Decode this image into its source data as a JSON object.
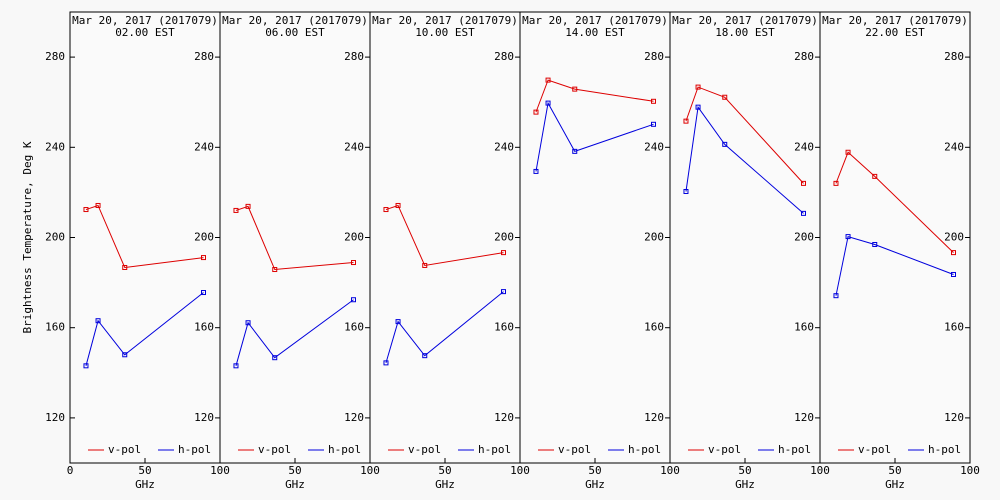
{
  "chart_data": [
    {
      "type": "line",
      "title": "Mar 20, 2017 (2017079)",
      "subtitle": "02.00 EST",
      "xlabel": "GHz",
      "ylabel": "Brightness Temperature, Deg K",
      "x": [
        10.65,
        18.7,
        36.5,
        89
      ],
      "xlim": [
        0,
        100
      ],
      "xticks": [
        0,
        50,
        100
      ],
      "ylim": [
        100,
        300
      ],
      "yticks": [
        120,
        160,
        200,
        240,
        280
      ],
      "series": [
        {
          "name": "v-pol",
          "color": "#dd0000",
          "values": [
            212.4,
            214.2,
            186.7,
            191.1
          ]
        },
        {
          "name": "h-pol",
          "color": "#0000dd",
          "values": [
            143.1,
            163.1,
            148,
            175.6
          ]
        }
      ]
    },
    {
      "type": "line",
      "title": "Mar 20, 2017 (2017079)",
      "subtitle": "06.00 EST",
      "xlabel": "GHz",
      "x": [
        10.65,
        18.7,
        36.5,
        89
      ],
      "xlim": [
        0,
        100
      ],
      "xticks": [
        50,
        100
      ],
      "ylim": [
        100,
        300
      ],
      "yticks": [
        120,
        160,
        200,
        240,
        280
      ],
      "series": [
        {
          "name": "v-pol",
          "color": "#dd0000",
          "values": [
            212,
            213.8,
            185.8,
            188.9
          ]
        },
        {
          "name": "h-pol",
          "color": "#0000dd",
          "values": [
            143.1,
            162.2,
            146.7,
            172.4
          ]
        }
      ]
    },
    {
      "type": "line",
      "title": "Mar 20, 2017 (2017079)",
      "subtitle": "10.00 EST",
      "xlabel": "GHz",
      "x": [
        10.65,
        18.7,
        36.5,
        89
      ],
      "xlim": [
        0,
        100
      ],
      "xticks": [
        50,
        100
      ],
      "ylim": [
        100,
        300
      ],
      "yticks": [
        120,
        160,
        200,
        240,
        280
      ],
      "series": [
        {
          "name": "v-pol",
          "color": "#dd0000",
          "values": [
            212.4,
            214.2,
            187.6,
            193.3
          ]
        },
        {
          "name": "h-pol",
          "color": "#0000dd",
          "values": [
            144.4,
            162.7,
            147.6,
            176
          ]
        }
      ]
    },
    {
      "type": "line",
      "title": "Mar 20, 2017 (2017079)",
      "subtitle": "14.00 EST",
      "xlabel": "GHz",
      "x": [
        10.65,
        18.7,
        36.5,
        89
      ],
      "xlim": [
        0,
        100
      ],
      "xticks": [
        50,
        100
      ],
      "ylim": [
        100,
        300
      ],
      "yticks": [
        120,
        160,
        200,
        240,
        280
      ],
      "series": [
        {
          "name": "v-pol",
          "color": "#dd0000",
          "values": [
            255.6,
            269.8,
            265.8,
            260.4
          ]
        },
        {
          "name": "h-pol",
          "color": "#0000dd",
          "values": [
            229.3,
            259.6,
            238.2,
            250.2
          ]
        }
      ]
    },
    {
      "type": "line",
      "title": "Mar 20, 2017 (2017079)",
      "subtitle": "18.00 EST",
      "xlabel": "GHz",
      "x": [
        10.65,
        18.7,
        36.5,
        89
      ],
      "xlim": [
        0,
        100
      ],
      "xticks": [
        50,
        100
      ],
      "ylim": [
        100,
        300
      ],
      "yticks": [
        120,
        160,
        200,
        240,
        280
      ],
      "series": [
        {
          "name": "v-pol",
          "color": "#dd0000",
          "values": [
            251.6,
            266.7,
            262.2,
            224
          ]
        },
        {
          "name": "h-pol",
          "color": "#0000dd",
          "values": [
            220.4,
            257.8,
            241.3,
            210.7
          ]
        }
      ]
    },
    {
      "type": "line",
      "title": "Mar 20, 2017 (2017079)",
      "subtitle": "22.00 EST",
      "xlabel": "GHz",
      "x": [
        10.65,
        18.7,
        36.5,
        89
      ],
      "xlim": [
        0,
        100
      ],
      "xticks": [
        50,
        100
      ],
      "ylim": [
        100,
        300
      ],
      "yticks": [
        120,
        160,
        200,
        240,
        280
      ],
      "series": [
        {
          "name": "v-pol",
          "color": "#dd0000",
          "values": [
            224,
            237.8,
            227.1,
            193.3
          ]
        },
        {
          "name": "h-pol",
          "color": "#0000dd",
          "values": [
            174.2,
            200.4,
            196.9,
            183.6
          ]
        }
      ]
    }
  ]
}
